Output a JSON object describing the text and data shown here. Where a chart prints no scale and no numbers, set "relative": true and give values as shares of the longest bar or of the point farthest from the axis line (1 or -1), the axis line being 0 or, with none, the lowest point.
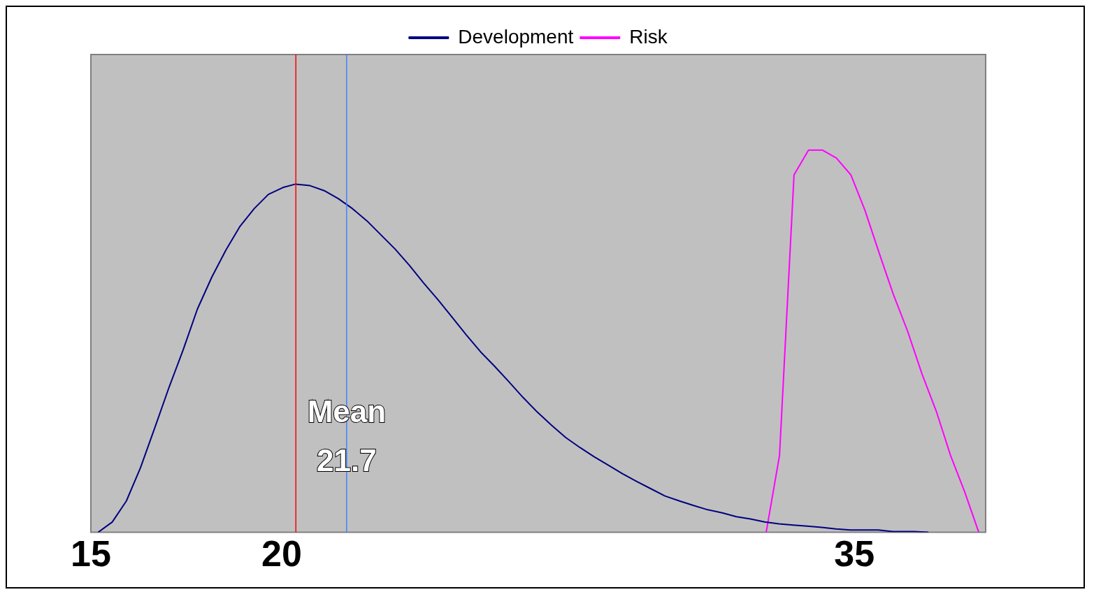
{
  "chart_data": {
    "type": "line",
    "relative": true,
    "xlim": [
      15,
      38.44
    ],
    "xticks": [
      15,
      20,
      35
    ],
    "legend": "top",
    "marker": "none",
    "line_style": "solid",
    "grid": false,
    "series": [
      {
        "name": "Development",
        "color": "#000080",
        "x": [
          15.19,
          15.56,
          15.93,
          16.3,
          16.68,
          17.05,
          17.42,
          17.79,
          18.17,
          18.54,
          18.91,
          19.28,
          19.65,
          20.03,
          20.36,
          20.74,
          21.11,
          21.48,
          21.85,
          22.23,
          22.6,
          22.97,
          23.34,
          23.72,
          24.09,
          24.46,
          24.83,
          25.21,
          25.58,
          25.95,
          26.32,
          26.69,
          27.07,
          27.44,
          27.81,
          28.18,
          28.55,
          28.93,
          29.3,
          29.67,
          30.04,
          30.42,
          30.79,
          31.16,
          31.54,
          31.91,
          32.28,
          32.65,
          33.03,
          33.4,
          33.77,
          34.14,
          34.52,
          34.89,
          35.63,
          36.01,
          36.56,
          36.94
        ],
        "values": [
          0,
          0.027,
          0.082,
          0.169,
          0.275,
          0.38,
          0.478,
          0.584,
          0.668,
          0.739,
          0.801,
          0.847,
          0.884,
          0.902,
          0.911,
          0.907,
          0.894,
          0.873,
          0.847,
          0.815,
          0.778,
          0.741,
          0.699,
          0.652,
          0.609,
          0.563,
          0.517,
          0.472,
          0.434,
          0.394,
          0.353,
          0.315,
          0.28,
          0.248,
          0.222,
          0.198,
          0.176,
          0.153,
          0.133,
          0.114,
          0.095,
          0.082,
          0.07,
          0.059,
          0.051,
          0.041,
          0.035,
          0.027,
          0.022,
          0.019,
          0.016,
          0.013,
          0.009,
          0.006,
          0.006,
          0.002,
          0.002,
          0
        ]
      },
      {
        "name": "Risk",
        "color": "#ff00ff",
        "x": [
          32.69,
          33.04,
          33.42,
          33.8,
          34.16,
          34.53,
          34.91,
          35.28,
          35.65,
          36.02,
          36.4,
          36.77,
          37.15,
          37.52,
          37.89,
          38.26
        ],
        "values": [
          0,
          0.201,
          0.935,
          1,
          1,
          0.979,
          0.935,
          0.842,
          0.731,
          0.623,
          0.525,
          0.415,
          0.316,
          0.201,
          0.106,
          0
        ]
      }
    ],
    "ref_lines": [
      {
        "axis": "x",
        "value": 20.37,
        "color": "#ff0000"
      },
      {
        "axis": "x",
        "value": 21.7,
        "label": "Mean 21.7",
        "color": "#4080ff"
      }
    ]
  }
}
